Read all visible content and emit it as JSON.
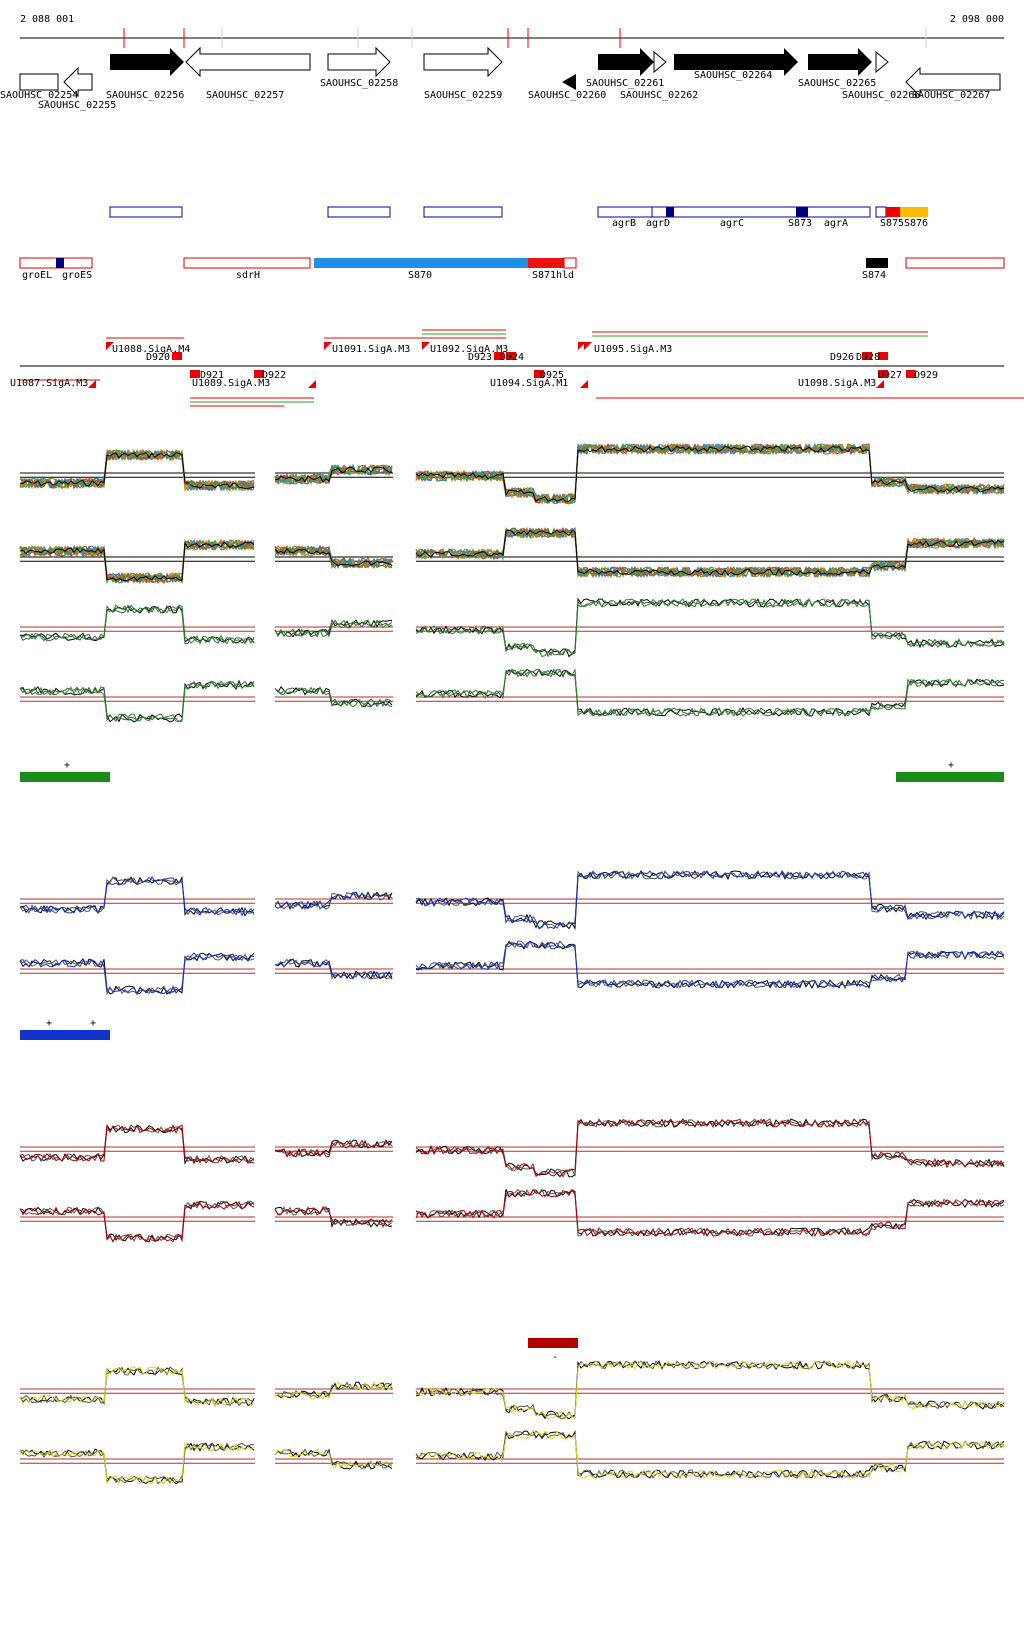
{
  "coords": {
    "left": "2 088 001",
    "right": "2 098 000"
  },
  "genes_top": [
    "SAOUHSC_02256",
    "SAOUHSC_02257",
    "SAOUHSC_02258",
    "SAOUHSC_02259",
    "SAOUHSC_02261",
    "SAOUHSC_02262",
    "SAOUHSC_02264",
    "SAOUHSC_02265",
    "SAOUHSC_02266",
    "SAOUHSC_02267"
  ],
  "genes_bottom": [
    "SAOUHSC_02254",
    "SAOUHSC_02255",
    "SAOUHSC_02260"
  ],
  "feature_labels": [
    "agrB",
    "agrD",
    "agrC",
    "S873",
    "agrA",
    "S875",
    "S876"
  ],
  "annotation_labels": [
    "groEL",
    "groES",
    "sdrH",
    "S870",
    "S871",
    "hld",
    "S874"
  ],
  "promoters_upper": [
    "U1088.SigA.M4",
    "U1091.SigA.M3",
    "U1092.SigA.M3",
    "U1095.SigA.M3"
  ],
  "promoters_lower": [
    "U1087.SigA.M3",
    "U1089.SigA.M3",
    "U1094.SigA.M1",
    "U1098.SigA.M3"
  ],
  "terminators": [
    "D920",
    "D921",
    "D922",
    "D923",
    "D924",
    "D925",
    "D926",
    "D927",
    "D928",
    "D929"
  ],
  "conditions": [
    {
      "color": "#1a8c1a",
      "marks": [
        "+",
        "+"
      ]
    },
    {
      "color": "#1133cc",
      "marks": [
        "+",
        "+"
      ]
    },
    {
      "color": "#b00000",
      "marks": [
        "-"
      ]
    },
    {
      "color": "#d8d820",
      "marks": []
    }
  ]
}
